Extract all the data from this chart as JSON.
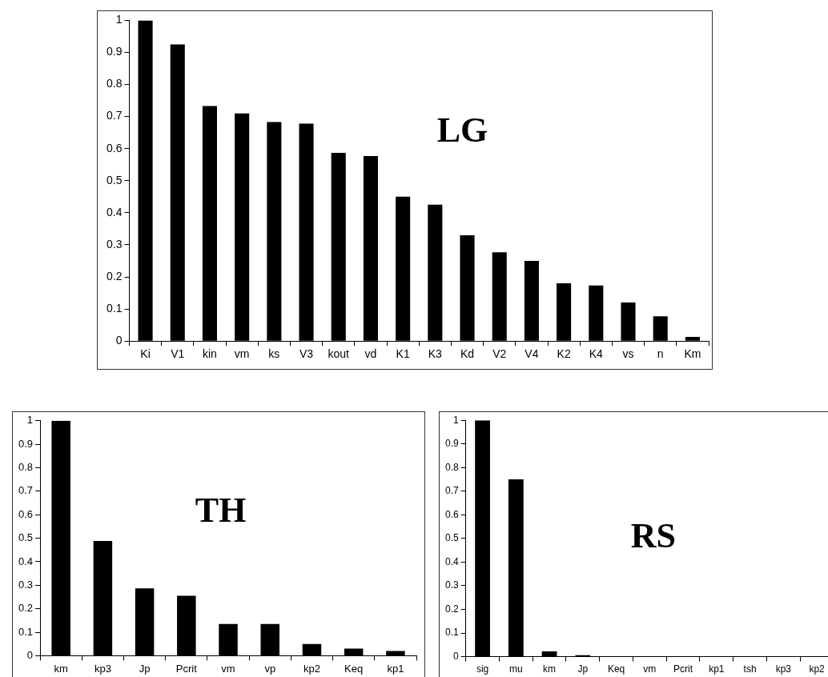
{
  "chart_data": [
    {
      "type": "bar",
      "title": "LG",
      "categories": [
        "Ki",
        "V1",
        "kin",
        "vm",
        "ks",
        "V3",
        "kout",
        "vd",
        "K1",
        "K3",
        "Kd",
        "V2",
        "V4",
        "K2",
        "K4",
        "vs",
        "n",
        "Km"
      ],
      "values": [
        1,
        0.925,
        0.733,
        0.71,
        0.683,
        0.678,
        0.587,
        0.577,
        0.45,
        0.425,
        0.33,
        0.277,
        0.25,
        0.18,
        0.173,
        0.12,
        0.077,
        0.013
      ],
      "color": "#000000",
      "ylim": [
        0,
        1
      ],
      "yticks": [
        0,
        0.1,
        0.2,
        0.3,
        0.4,
        0.5,
        0.6,
        0.7,
        0.8,
        0.9,
        1
      ],
      "legend": false
    },
    {
      "type": "bar",
      "title": "TH",
      "categories": [
        "km",
        "kp3",
        "Jp",
        "Pcrit",
        "vm",
        "vp",
        "kp2",
        "Keq",
        "kp1"
      ],
      "values": [
        1,
        0.488,
        0.287,
        0.255,
        0.135,
        0.135,
        0.05,
        0.03,
        0.02
      ],
      "color": "#000000",
      "ylim": [
        0,
        1
      ],
      "yticks": [
        0,
        0.1,
        0.2,
        0.3,
        0.4,
        0.5,
        0.6,
        0.7,
        0.8,
        0.9,
        1
      ],
      "legend": false
    },
    {
      "type": "bar",
      "title": "RS",
      "categories": [
        "sig",
        "mu",
        "km",
        "Jp",
        "Keq",
        "vm",
        "Pcrit",
        "kp1",
        "tsh",
        "kp3",
        "kp2"
      ],
      "values": [
        1,
        0.75,
        0.022,
        0.006,
        0.002,
        0.002,
        0,
        0,
        0,
        0,
        0
      ],
      "color": "#000000",
      "ylim": [
        0,
        1
      ],
      "yticks": [
        0,
        0.1,
        0.2,
        0.3,
        0.4,
        0.5,
        0.6,
        0.7,
        0.8,
        0.9,
        1
      ],
      "legend": false
    }
  ]
}
